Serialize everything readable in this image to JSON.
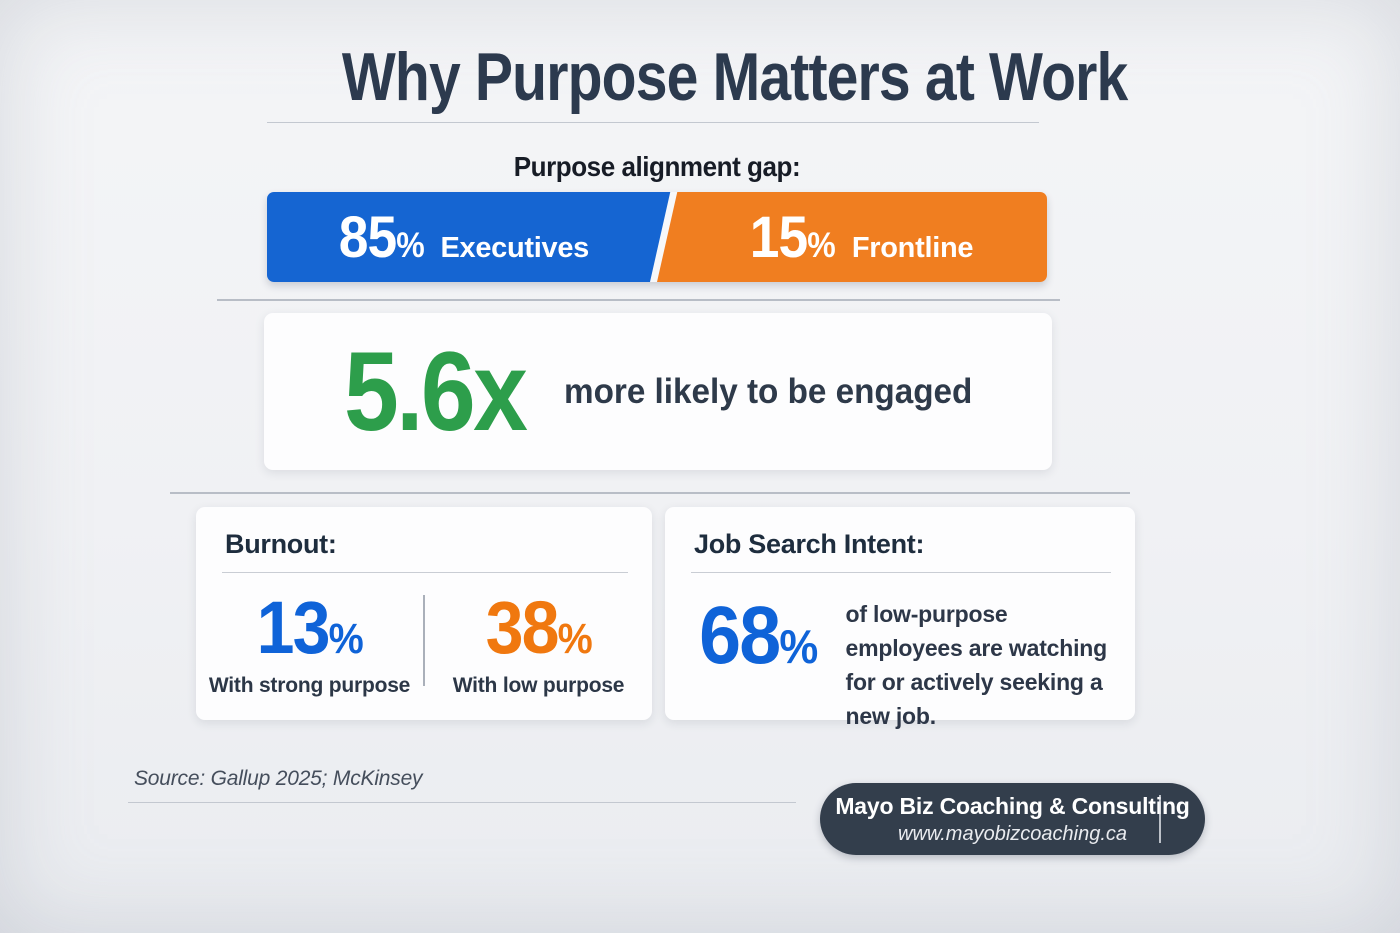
{
  "title": "Why Purpose Matters at Work",
  "alignment": {
    "heading": "Purpose alignment gap:",
    "left": {
      "number": "85",
      "suffix": "%",
      "label": "Executives"
    },
    "right": {
      "number": "15",
      "suffix": "%",
      "label": "Frontline"
    }
  },
  "engaged": {
    "value": "5.6x",
    "text": "more likely to be engaged"
  },
  "burnout": {
    "heading": "Burnout:",
    "left": {
      "number": "13",
      "suffix": "%",
      "label": "With strong purpose"
    },
    "right": {
      "number": "38",
      "suffix": "%",
      "label": "With low purpose"
    }
  },
  "job_search": {
    "heading": "Job Search Intent:",
    "number": "68",
    "suffix": "%",
    "text": "of low-purpose employees are watching for or actively seeking a new job."
  },
  "source": {
    "text": "Source: Gallup 2025; McKinsey"
  },
  "badge": {
    "name": "Mayo Biz Coaching & Consulting",
    "url": "www.mayobizcoaching.ca"
  },
  "colors": {
    "blue": "#1565d2",
    "orange": "#f07e20",
    "green": "#2d9e4b",
    "number_blue": "#0f63d8",
    "number_orange": "#f0780f",
    "navy_text": "#2c3a4e",
    "badge_background": "#333e4c",
    "page_background": "#f0f1f4"
  },
  "chart_data": [
    {
      "type": "bar",
      "title": "Purpose alignment gap",
      "categories": [
        "Executives",
        "Frontline"
      ],
      "values": [
        85,
        15
      ],
      "unit": "%",
      "colors": [
        "#1565d2",
        "#f07e20"
      ],
      "orientation": "horizontal-split-bar",
      "legend_position": "inside"
    },
    {
      "type": "table",
      "title": "Why Purpose Matters at Work — key stats",
      "rows": [
        {
          "label": "More likely to be engaged (with purpose)",
          "value": "5.6x"
        },
        {
          "label": "Burnout with strong purpose",
          "value": "13%"
        },
        {
          "label": "Burnout with low purpose",
          "value": "38%"
        },
        {
          "label": "Low-purpose employees watching for or actively seeking a new job",
          "value": "68%"
        }
      ],
      "source": "Gallup 2025; McKinsey"
    }
  ]
}
